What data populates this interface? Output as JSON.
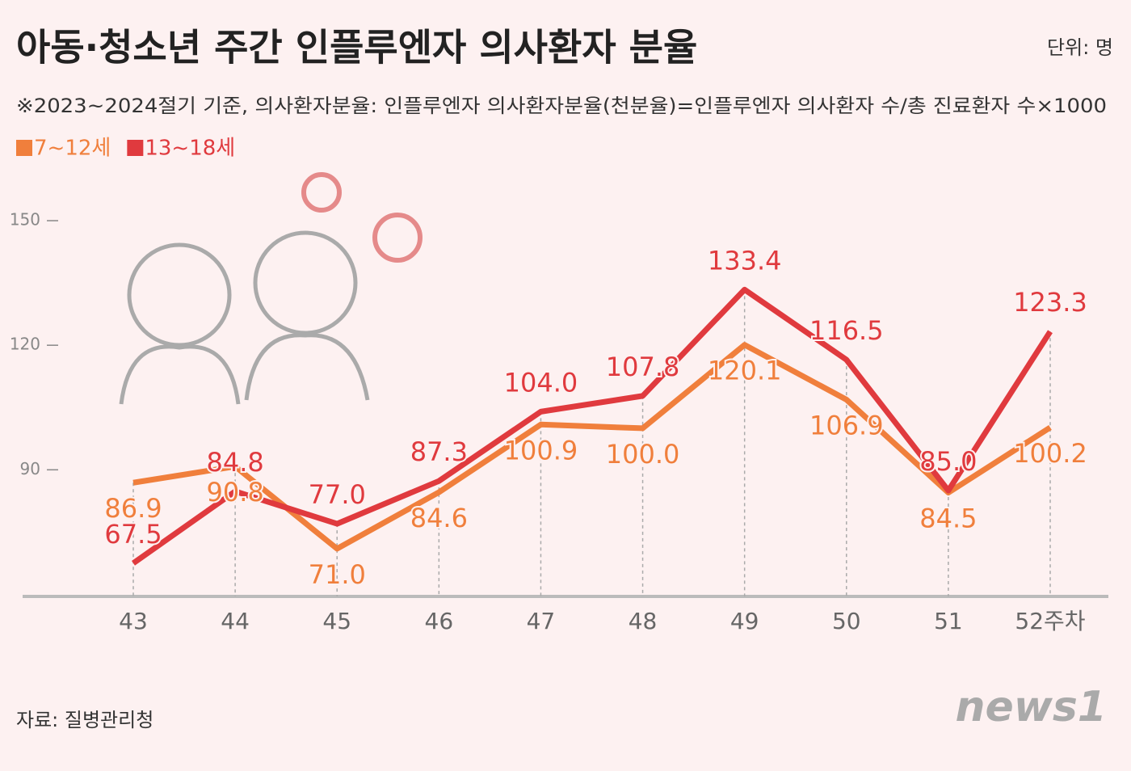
{
  "chart_data": {
    "type": "line",
    "title": "아동·청소년 주간 인플루엔자 의사환자 분율",
    "unit": "단위: 명",
    "subtitle": "※2023~2024절기 기준, 의사환자분율: 인플루엔자 의사환자분율(천분율)=인플루엔자 의사환자 수/총 진료환자 수×1000",
    "source": "자료: 질병관리청",
    "logo": "news1",
    "categories": [
      "43",
      "44",
      "45",
      "46",
      "47",
      "48",
      "49",
      "50",
      "51",
      "52주차"
    ],
    "series": [
      {
        "name": "7~12세",
        "color": "#f07f3c",
        "values": [
          86.9,
          90.8,
          71.0,
          84.6,
          100.9,
          100.0,
          120.1,
          106.9,
          84.5,
          100.2
        ],
        "value_labels": [
          "86.9",
          "90.8",
          "71.0",
          "84.6",
          "100.9",
          "100.0",
          "120.1",
          "106.9",
          "84.5",
          "100.2"
        ]
      },
      {
        "name": "13~18세",
        "color": "#e03a3e",
        "values": [
          67.5,
          84.8,
          77.0,
          87.3,
          104.0,
          107.8,
          133.4,
          116.5,
          85.0,
          123.3
        ],
        "value_labels": [
          "67.5",
          "84.8",
          "77.0",
          "87.3",
          "104.0",
          "107.8",
          "133.4",
          "116.5",
          "85.0",
          "123.3"
        ]
      }
    ],
    "ylim": [
      59.5,
      165
    ],
    "yticks": [
      90,
      120,
      150
    ]
  }
}
